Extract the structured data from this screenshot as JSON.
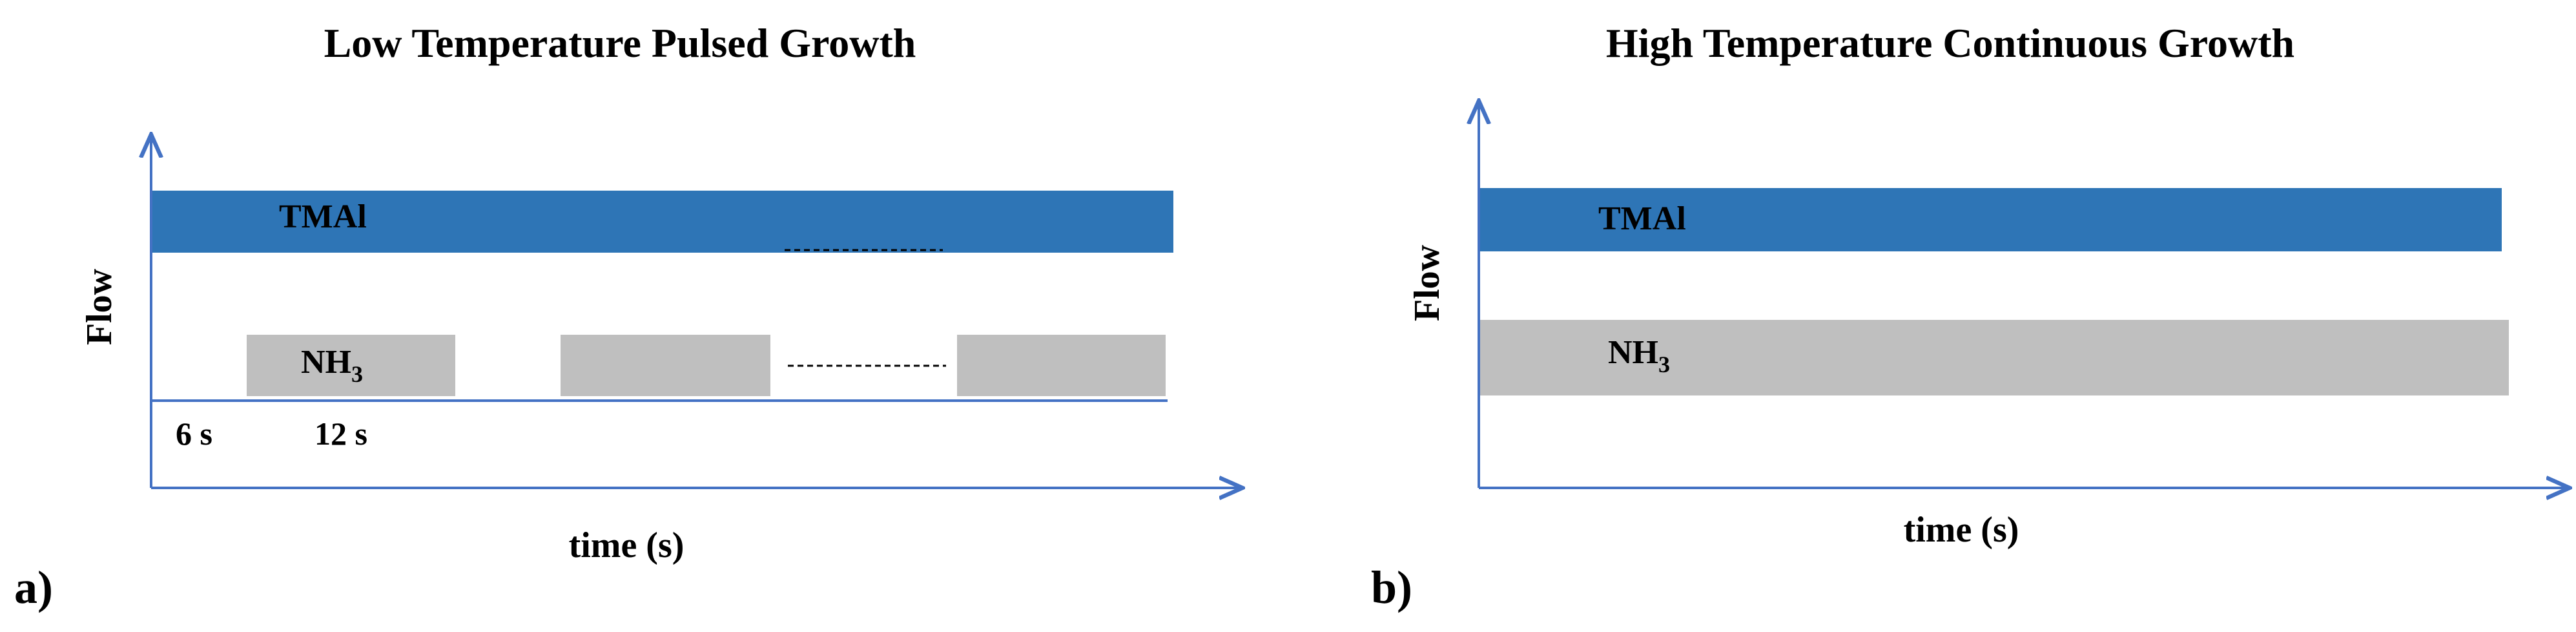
{
  "figure": {
    "panel_a": {
      "label": "a)",
      "title": "Low Temperature Pulsed Growth",
      "y_axis_label": "Flow",
      "x_axis_label": "time (s)",
      "tmal_label": "TMAl",
      "nh3_label_base": "NH",
      "nh3_label_sub": "3",
      "time_mark_1": "6 s",
      "time_mark_2": "12 s",
      "tmal_mode": "continuous",
      "nh3_mode": "pulsed",
      "continuation": "dashed ellipsis",
      "visible_nh3_pulses": 3
    },
    "panel_b": {
      "label": "b)",
      "title": "High Temperature Continuous Growth",
      "y_axis_label": "Flow",
      "x_axis_label": "time (s)",
      "tmal_label": "TMAl",
      "nh3_label_base": "NH",
      "nh3_label_sub": "3",
      "tmal_mode": "continuous",
      "nh3_mode": "continuous"
    },
    "colors": {
      "tmal": "#2e75b6",
      "nh3": "#bfbfbf",
      "axis": "#4472c4",
      "text": "#000000"
    }
  }
}
